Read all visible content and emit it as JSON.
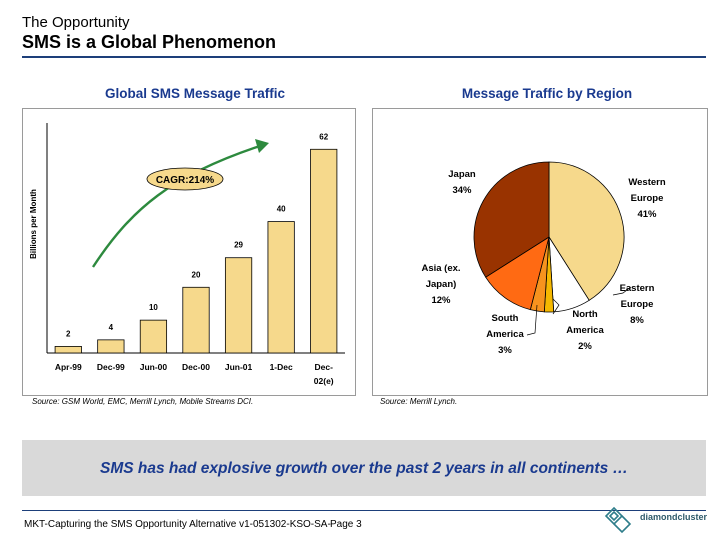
{
  "header": {
    "title": "The Opportunity",
    "subtitle": "SMS is a Global Phenomenon"
  },
  "left_panel": {
    "title": "Global SMS Message Traffic",
    "source": "Source: GSM World, EMC, Merrill Lynch, Mobile Streams DCI.",
    "cagr_label": "CAGR:214%"
  },
  "right_panel": {
    "title": "Message Traffic by Region",
    "source": "Source: Merrill Lynch."
  },
  "banner": {
    "text": "SMS has had explosive growth over the past 2 years in all continents …"
  },
  "footer": {
    "doc_label": "MKT-Capturing the SMS Opportunity Alternative v1-051302-KSO-SA-",
    "page_label": "Page  3",
    "brand": "diamondcluster"
  },
  "colors": {
    "bar_fill": "#f6d98c",
    "title_blue": "#1a3a8f",
    "arrow_green": "#2d8a3e",
    "japan": "#993300",
    "western_europe": "#f6d98c",
    "eastern_europe": "#ffffff",
    "north_america": "#f5b800",
    "south_america": "#f7931e",
    "asia": "#ff6a13"
  },
  "chart_data": [
    {
      "type": "bar",
      "title": "Global SMS Message Traffic",
      "ylabel": "Billions per Month",
      "categories": [
        "Apr-99",
        "Dec-99",
        "Jun-00",
        "Dec-00",
        "Jun-01",
        "1-Dec",
        "Dec-02(e)"
      ],
      "category_lines": [
        [
          "Apr-99"
        ],
        [
          "Dec-99"
        ],
        [
          "Jun-00"
        ],
        [
          "Dec-00"
        ],
        [
          "Jun-01"
        ],
        [
          "1-Dec"
        ],
        [
          "Dec-",
          "02(e)"
        ]
      ],
      "values": [
        2,
        4,
        10,
        20,
        29,
        40,
        62
      ],
      "ylim": [
        0,
        70
      ],
      "annotation": "CAGR:214%"
    },
    {
      "type": "pie",
      "title": "Message Traffic by Region",
      "slices": [
        {
          "lines": [
            "Western",
            "Europe",
            "41%"
          ],
          "label": "Western Europe",
          "value": 41
        },
        {
          "lines": [
            "Eastern",
            "Europe",
            "8%"
          ],
          "label": "Eastern Europe",
          "value": 8
        },
        {
          "lines": [
            "North",
            "America",
            "2%"
          ],
          "label": "North America",
          "value": 2
        },
        {
          "lines": [
            "South",
            "America",
            "3%"
          ],
          "label": "South America",
          "value": 3
        },
        {
          "lines": [
            "Asia (ex.",
            "Japan)",
            "12%"
          ],
          "label": "Asia (ex. Japan)",
          "value": 12
        },
        {
          "lines": [
            "Japan",
            "34%"
          ],
          "label": "Japan",
          "value": 34
        }
      ]
    }
  ]
}
